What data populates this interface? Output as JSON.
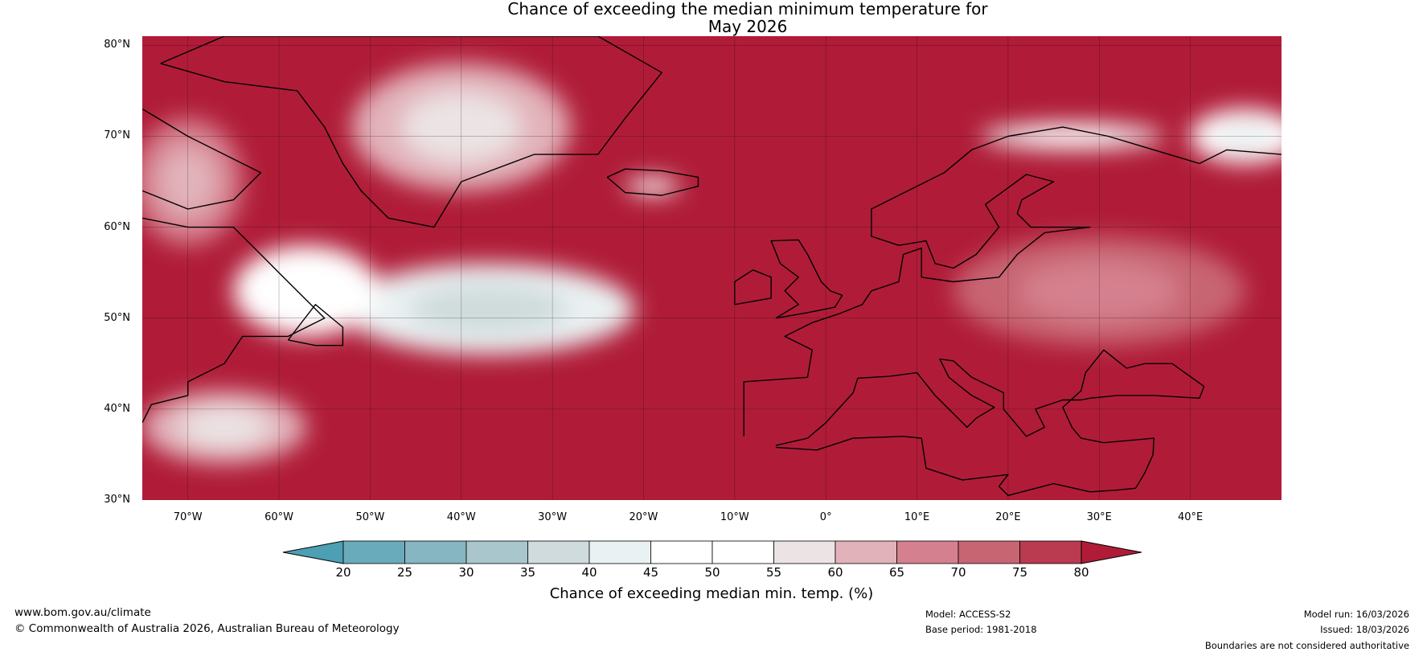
{
  "title": {
    "line1": "Chance of exceeding the median minimum temperature for",
    "line2": "May 2026"
  },
  "map": {
    "lat_labels": [
      "80°N",
      "70°N",
      "60°N",
      "50°N",
      "40°N",
      "30°N"
    ],
    "lon_labels": [
      "70°W",
      "60°W",
      "50°W",
      "40°W",
      "30°W",
      "20°W",
      "10°W",
      "0°",
      "10°E",
      "20°E",
      "30°E",
      "40°E"
    ],
    "lat_values": [
      80,
      70,
      60,
      50,
      40,
      30
    ],
    "lon_values": [
      -70,
      -60,
      -50,
      -40,
      -30,
      -20,
      -10,
      0,
      10,
      20,
      30,
      40
    ],
    "extent": {
      "lon_min": -75,
      "lon_max": 50,
      "lat_min": 30,
      "lat_max": 81
    },
    "background_color": "#b01c38",
    "features": [
      {
        "name": "nw-atlantic-weak",
        "lon": -37,
        "lat": 51,
        "rx": 16,
        "ry": 5,
        "value": 40
      },
      {
        "name": "labrador-neutral",
        "lon": -57,
        "lat": 53,
        "rx": 8,
        "ry": 5,
        "value": 50
      },
      {
        "name": "iceland-cool",
        "lon": -19,
        "lat": 64.5,
        "rx": 3,
        "ry": 1,
        "value": 55
      },
      {
        "name": "greenland-interior",
        "lon": -40,
        "lat": 71,
        "rx": 12,
        "ry": 7,
        "value": 62
      },
      {
        "name": "scandinavia-north",
        "lon": 27,
        "lat": 70,
        "rx": 10,
        "ry": 1.5,
        "value": 55
      },
      {
        "name": "russia-nw",
        "lon": 46,
        "lat": 70,
        "rx": 6,
        "ry": 3,
        "value": 45
      },
      {
        "name": "eastern-europe",
        "lon": 30,
        "lat": 53,
        "rx": 16,
        "ry": 6,
        "value": 70
      },
      {
        "name": "canada-maritime",
        "lon": -70,
        "lat": 65,
        "rx": 6,
        "ry": 7,
        "value": 65
      },
      {
        "name": "us-east-coast",
        "lon": -66,
        "lat": 38,
        "rx": 9,
        "ry": 4,
        "value": 58
      }
    ]
  },
  "colorbar": {
    "ticks": [
      "20",
      "25",
      "30",
      "35",
      "40",
      "45",
      "50",
      "55",
      "60",
      "65",
      "70",
      "75",
      "80"
    ],
    "tick_values": [
      20,
      25,
      30,
      35,
      40,
      45,
      50,
      55,
      60,
      65,
      70,
      75,
      80
    ],
    "colors": [
      "#4d9fb3",
      "#6aabbb",
      "#86b6c2",
      "#a9c6cd",
      "#cfdbdc",
      "#eaf1f2",
      "#ffffff",
      "#ffffff",
      "#ebe3e4",
      "#e2b2ba",
      "#d5808e",
      "#c86572",
      "#ba3a4f",
      "#b01c38"
    ],
    "label": "Chance of exceeding median min. temp. (%)"
  },
  "footer": {
    "website": "www.bom.gov.au/climate",
    "copyright": "© Commonwealth of Australia 2026, Australian Bureau of Meteorology",
    "model": "Model: ACCESS-S2",
    "base_period": "Base period: 1981-2018",
    "model_run": "Model run: 16/03/2026",
    "issued": "Issued: 18/03/2026",
    "disclaimer": "Boundaries are not considered authoritative"
  }
}
